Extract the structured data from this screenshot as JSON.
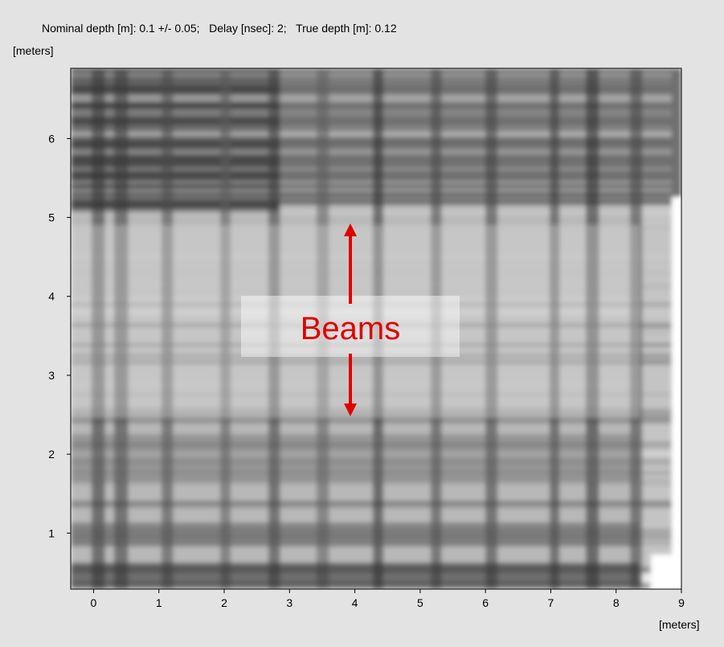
{
  "chart_data": {
    "type": "image",
    "title": "Nominal depth [m]: 0.1 +/- 0.05;   Delay [nsec]: 2;   True depth [m]: 0.12",
    "xlabel": "[meters]",
    "ylabel": "[meters]",
    "xlim": [
      -0.35,
      9
    ],
    "ylim": [
      0.29,
      6.89
    ],
    "xticks": [
      0,
      1,
      2,
      3,
      4,
      5,
      6,
      7,
      8,
      9
    ],
    "yticks": [
      1,
      2,
      3,
      4,
      5,
      6
    ],
    "annotation": "Beams"
  }
}
